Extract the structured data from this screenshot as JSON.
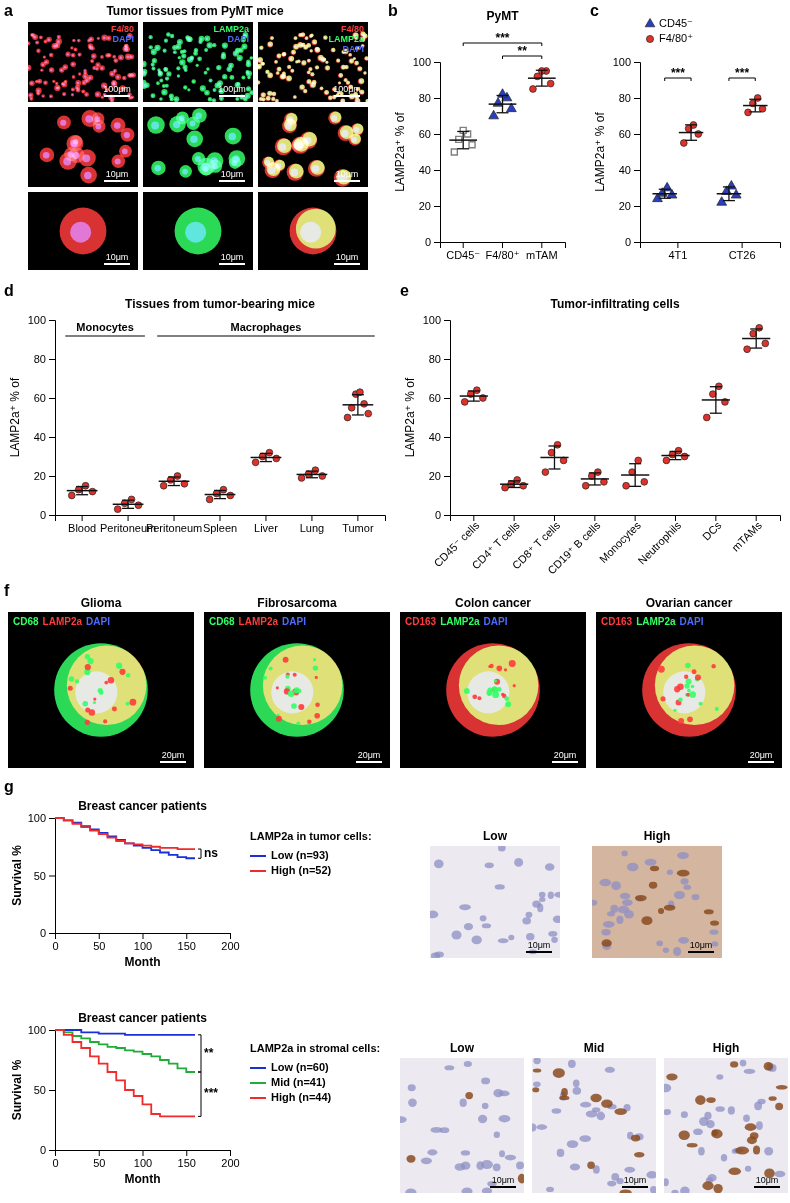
{
  "chart_data": [
    {
      "panel": "b",
      "type": "dot",
      "title": "PyMT",
      "y_label": "LAMP2a⁺ % of",
      "categories": [
        "CD45⁻",
        "F4/80⁺",
        "mTAM"
      ],
      "ylim": [
        0,
        100
      ],
      "yticks": [
        0,
        20,
        40,
        60,
        80,
        100
      ],
      "series": [
        {
          "color": "#7f7f7f",
          "marker": "square-open",
          "values": [
            [
              50,
              54,
              57,
              60,
              62
            ],
            null,
            null
          ],
          "mean": [
            56.6,
            null,
            null
          ],
          "sd": [
            4.8,
            null,
            null
          ]
        },
        {
          "color": "#2a3fbf",
          "marker": "triangle",
          "values": [
            null,
            [
              70,
              74,
              77,
              80,
              82
            ],
            null
          ],
          "mean": [
            null,
            76.6,
            null
          ],
          "sd": [
            null,
            4.8,
            null
          ]
        },
        {
          "color": "#e0322b",
          "marker": "circle",
          "values": [
            null,
            null,
            [
              85,
              88,
              92,
              95,
              95
            ]
          ],
          "mean": [
            null,
            null,
            91
          ],
          "sd": [
            null,
            null,
            4.4
          ]
        }
      ],
      "annotations": [
        {
          "text": "**",
          "between": [
            1,
            2
          ]
        },
        {
          "text": "***",
          "between": [
            0,
            2
          ]
        }
      ]
    },
    {
      "panel": "c",
      "type": "dot",
      "y_label": "LAMP2a⁺ % of",
      "categories": [
        "4T1",
        "CT26"
      ],
      "ylim": [
        0,
        100
      ],
      "yticks": [
        0,
        20,
        40,
        60,
        80,
        100
      ],
      "legend": "top-left",
      "series": [
        {
          "name": "CD45⁻",
          "color": "#2a3fbf",
          "marker": "triangle",
          "values": [
            [
              24,
              26,
              27,
              30
            ],
            [
              22,
              26,
              28,
              31
            ]
          ],
          "mean": [
            26.8,
            26.8
          ],
          "sd": [
            2.5,
            3.8
          ]
        },
        {
          "name": "F4/80⁺",
          "color": "#e0322b",
          "marker": "circle",
          "values": [
            [
              55,
              60,
              63,
              65
            ],
            [
              72,
              74,
              77,
              80
            ]
          ],
          "mean": [
            60.8,
            75.8
          ],
          "sd": [
            4.3,
            3.5
          ]
        }
      ],
      "annotations": [
        {
          "text": "***",
          "category": 0
        },
        {
          "text": "***",
          "category": 1
        }
      ]
    },
    {
      "panel": "d",
      "type": "dot",
      "title": "Tissues from tumor-bearing mice",
      "y_label": "LAMP2a⁺ % of",
      "categories": [
        "Blood",
        "Peritoneum",
        "Peritoneum",
        "Spleen",
        "Liver",
        "Lung",
        "Tumor"
      ],
      "ylim": [
        0,
        100
      ],
      "yticks": [
        0,
        20,
        40,
        60,
        80,
        100
      ],
      "groups": [
        {
          "label": "Monocytes",
          "from": 0,
          "to": 1
        },
        {
          "label": "Macrophages",
          "from": 2,
          "to": 6
        }
      ],
      "series": [
        {
          "color": "#e0322b",
          "marker": "circle",
          "values": [
            [
              10,
              12,
              13,
              15
            ],
            [
              3,
              5,
              6,
              8
            ],
            [
              15,
              16,
              18,
              20
            ],
            [
              8,
              10,
              11,
              13
            ],
            [
              27,
              29,
              30,
              32
            ],
            [
              19,
              20,
              21,
              23
            ],
            [
              50,
              52,
              55,
              57,
              62,
              63
            ]
          ],
          "mean": [
            12.5,
            5.5,
            17.3,
            10.5,
            29.5,
            20.8,
            56.5
          ],
          "sd": [
            2.1,
            2.1,
            2.2,
            2.1,
            2.1,
            1.7,
            5.2
          ]
        }
      ]
    },
    {
      "panel": "e",
      "type": "dot",
      "title": "Tumor-infiltrating cells",
      "y_label": "LAMP2a⁺ % of",
      "categories": [
        "CD45⁻ cells",
        "CD4⁺ T cells",
        "CD8⁺ T cells",
        "CD19⁺ B cells",
        "Monocytes",
        "Neutrophils",
        "DCs",
        "mTAMs"
      ],
      "ylim": [
        0,
        100
      ],
      "yticks": [
        0,
        20,
        40,
        60,
        80,
        100
      ],
      "series": [
        {
          "color": "#e0322b",
          "marker": "circle",
          "values": [
            [
              58,
              60,
              62,
              64
            ],
            [
              14,
              15,
              16,
              18
            ],
            [
              22,
              28,
              32,
              36
            ],
            [
              15,
              17,
              20,
              22
            ],
            [
              15,
              17,
              22,
              28
            ],
            [
              28,
              30,
              31,
              33
            ],
            [
              50,
              58,
              62,
              66
            ],
            [
              85,
              88,
              93,
              96
            ]
          ],
          "mean": [
            61,
            15.8,
            29.5,
            18.5,
            20.5,
            30.5,
            59,
            90.5
          ],
          "sd": [
            2.6,
            1.7,
            5.9,
            3.1,
            5.8,
            2.1,
            6.8,
            4.9
          ]
        }
      ]
    },
    {
      "type": "line",
      "title": "Breast cancer patients",
      "x_label": "Month",
      "y_label": "Survival %",
      "xlim": [
        0,
        200
      ],
      "xticks": [
        0,
        50,
        100,
        150,
        200
      ],
      "ylim": [
        0,
        100
      ],
      "yticks": [
        0,
        50,
        100
      ],
      "legend": "right",
      "legend_title": "LAMP2a in tumor cells:",
      "x": [
        0,
        10,
        20,
        30,
        40,
        50,
        60,
        70,
        80,
        90,
        100,
        110,
        120,
        130,
        140,
        150,
        160
      ],
      "series": [
        {
          "name": "Low (n=93)",
          "color": "#1a2fd8",
          "line_style": "step",
          "values": [
            100,
            98,
            96,
            93,
            90,
            87,
            84,
            81,
            78,
            76,
            74,
            72,
            70,
            68,
            66,
            65,
            65
          ]
        },
        {
          "name": "High (n=52)",
          "color": "#ef2b2b",
          "line_style": "step",
          "values": [
            100,
            98,
            95,
            92,
            89,
            86,
            83,
            80,
            78,
            77,
            76,
            75,
            74,
            74,
            73,
            73,
            73
          ]
        }
      ],
      "annotations": [
        {
          "text": "ns",
          "between_series": [
            0,
            1
          ]
        }
      ]
    },
    {
      "type": "line",
      "title": "Breast cancer patients",
      "x_label": "Month",
      "y_label": "Survival %",
      "xlim": [
        0,
        200
      ],
      "xticks": [
        0,
        50,
        100,
        150,
        200
      ],
      "ylim": [
        0,
        100
      ],
      "yticks": [
        0,
        50,
        100
      ],
      "legend": "right",
      "legend_title": "LAMP2a in stromal cells:",
      "x": [
        0,
        10,
        20,
        30,
        40,
        50,
        60,
        70,
        80,
        90,
        100,
        110,
        120,
        130,
        140,
        150,
        160
      ],
      "series": [
        {
          "name": "Low (n=60)",
          "color": "#1a2fd8",
          "line_style": "step",
          "values": [
            100,
            100,
            100,
            98,
            98,
            97,
            97,
            97,
            96,
            96,
            96,
            96,
            96,
            96,
            96,
            96,
            96
          ]
        },
        {
          "name": "Mid (n=41)",
          "color": "#22aa3a",
          "line_style": "step",
          "values": [
            100,
            98,
            95,
            93,
            90,
            88,
            86,
            85,
            83,
            82,
            80,
            78,
            75,
            72,
            68,
            65,
            65
          ]
        },
        {
          "name": "High (n=44)",
          "color": "#ef2b2b",
          "line_style": "step",
          "values": [
            100,
            96,
            90,
            85,
            78,
            72,
            65,
            58,
            50,
            45,
            38,
            30,
            28,
            28,
            28,
            28,
            28
          ]
        }
      ],
      "annotations": [
        {
          "text": "**",
          "between_series": [
            0,
            1
          ]
        },
        {
          "text": "***",
          "between_series": [
            1,
            2
          ]
        }
      ]
    }
  ],
  "images": [
    {
      "panel": "a",
      "title": "Tumor tissues from PyMT mice",
      "columns": [
        [
          {
            "text": "F4/80",
            "color": "#ff3b3b"
          },
          {
            "text": "DAPI",
            "color": "#4f6bff"
          }
        ],
        [
          {
            "text": "LAMP2a",
            "color": "#33ff66"
          },
          {
            "text": "DAPI",
            "color": "#4f6bff"
          }
        ],
        [
          {
            "text": "F4/80",
            "color": "#ff3b3b"
          },
          {
            "text": "LAMP2a",
            "color": "#33ff66"
          },
          {
            "text": "DAPI",
            "color": "#4f6bff"
          }
        ]
      ],
      "scale_bars": [
        "100μm",
        "10μm",
        "10μm"
      ]
    },
    {
      "panel": "f",
      "panels": [
        {
          "title": "Glioma",
          "stains": [
            {
              "text": "CD68",
              "color": "#33ff66"
            },
            {
              "text": "LAMP2a",
              "color": "#ff3b3b"
            },
            {
              "text": "DAPI",
              "color": "#4f6bff"
            }
          ]
        },
        {
          "title": "Fibrosarcoma",
          "stains": [
            {
              "text": "CD68",
              "color": "#33ff66"
            },
            {
              "text": "LAMP2a",
              "color": "#ff3b3b"
            },
            {
              "text": "DAPI",
              "color": "#4f6bff"
            }
          ]
        },
        {
          "title": "Colon cancer",
          "stains": [
            {
              "text": "CD163",
              "color": "#ff3b3b"
            },
            {
              "text": "LAMP2a",
              "color": "#33ff66"
            },
            {
              "text": "DAPI",
              "color": "#4f6bff"
            }
          ]
        },
        {
          "title": "Ovarian cancer",
          "stains": [
            {
              "text": "CD163",
              "color": "#ff3b3b"
            },
            {
              "text": "LAMP2a",
              "color": "#33ff66"
            },
            {
              "text": "DAPI",
              "color": "#4f6bff"
            }
          ]
        }
      ],
      "scale_bar": "20μm"
    },
    {
      "panel": "g",
      "rows": [
        [
          "Low",
          "High"
        ],
        [
          "Low",
          "Mid",
          "High"
        ]
      ],
      "scale_bar": "10μm"
    }
  ]
}
